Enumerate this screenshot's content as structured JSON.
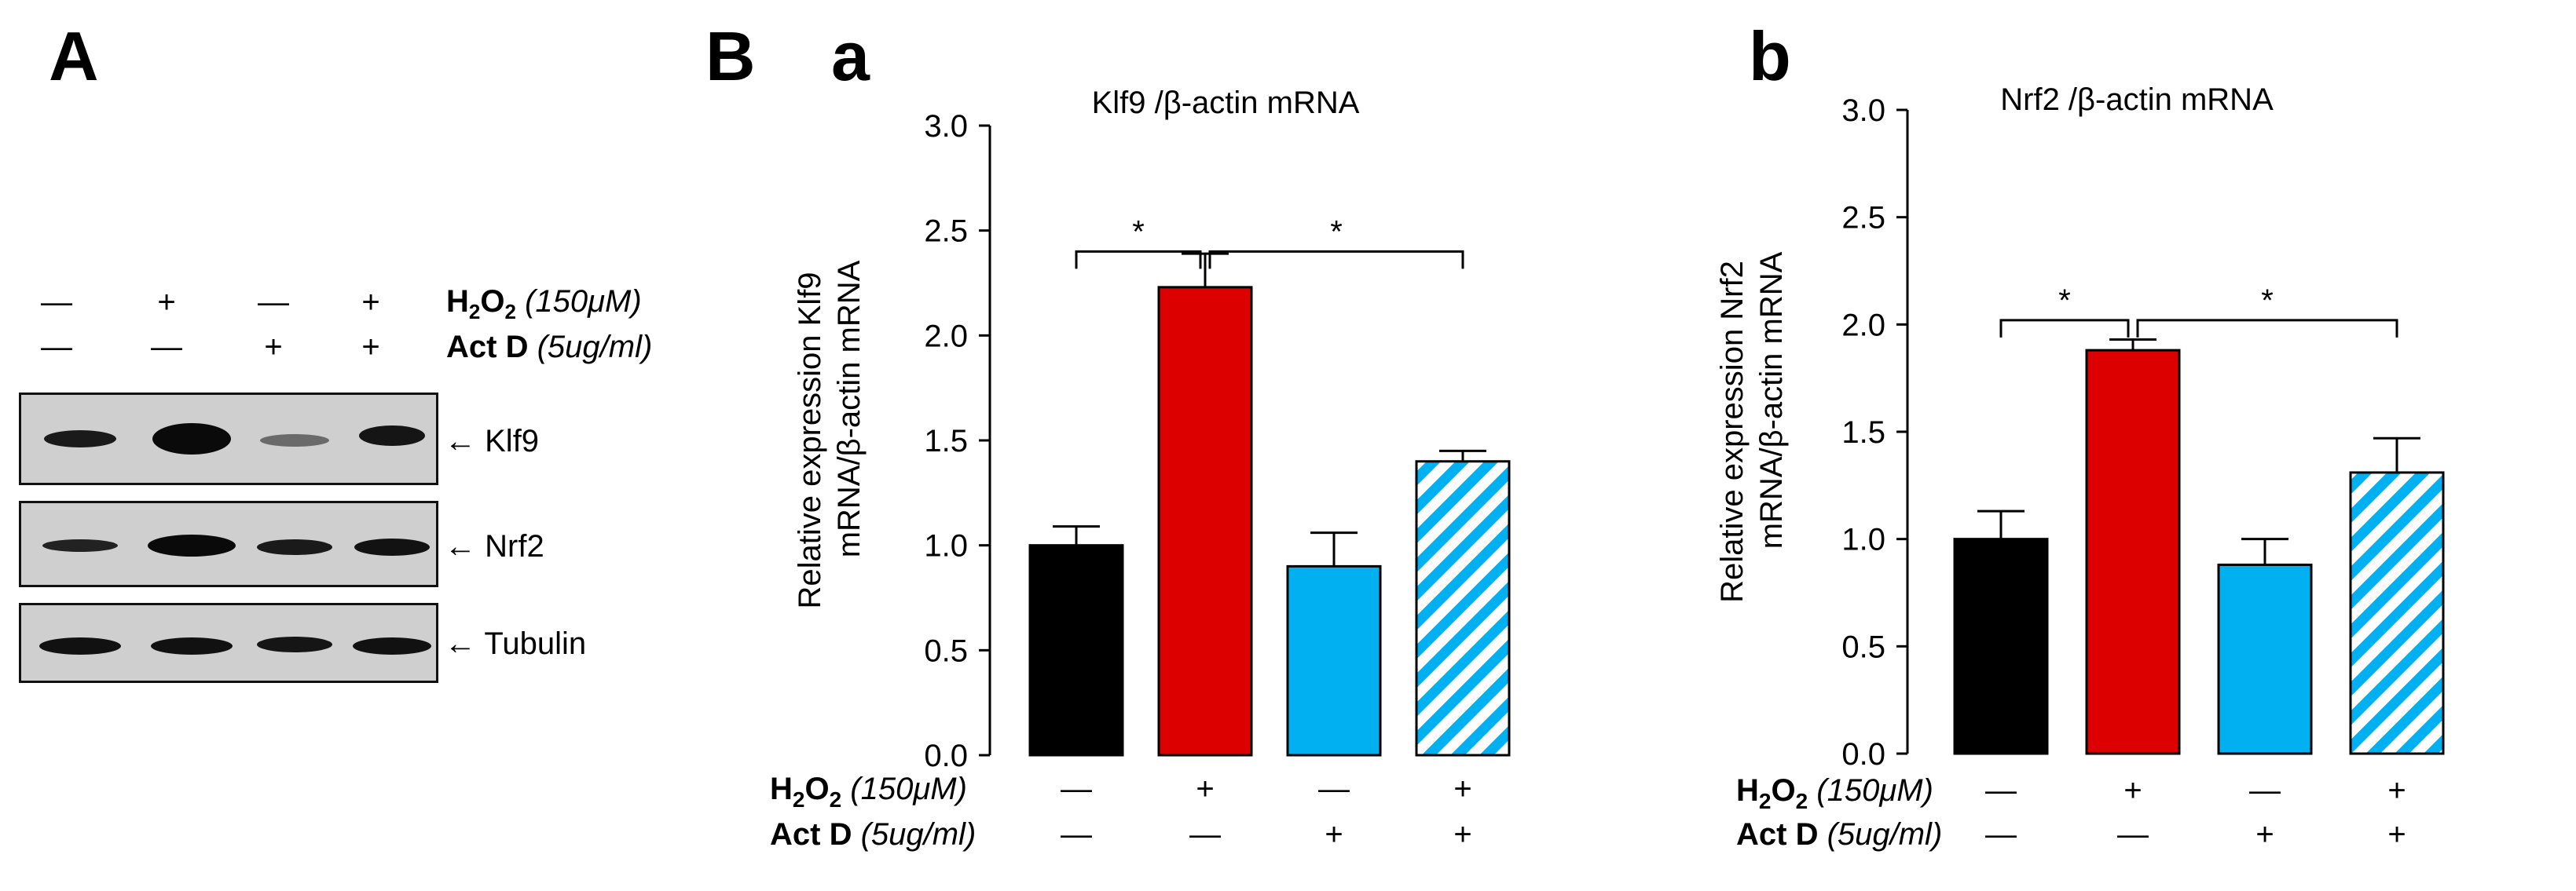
{
  "panel_labels": {
    "A": "A",
    "B": "B",
    "a": "a",
    "b": "b"
  },
  "treatments": {
    "h2o2": {
      "name": "H",
      "sub": "2",
      "mid": "O",
      "sub2": "2",
      "dose": "(150μM)"
    },
    "actd": {
      "name": "Act D",
      "dose": "(5ug/ml)"
    }
  },
  "conditions": {
    "h2o2": [
      "—",
      "+",
      "—",
      "+"
    ],
    "actd": [
      "—",
      "—",
      "+",
      "+"
    ]
  },
  "western": {
    "bands": [
      {
        "label": "Klf9",
        "arrow": "←"
      },
      {
        "label": "Nrf2",
        "arrow": "←"
      },
      {
        "label": "Tubulin",
        "arrow": "←"
      }
    ]
  },
  "colors": {
    "control": "#000000",
    "h2o2": "#dd0000",
    "actd": "#00b0f0",
    "combo_stripe": "#00b0f0",
    "combo_bg": "#ffffff"
  },
  "chart_data": [
    {
      "type": "bar",
      "title": "Klf9 /β-actin mRNA",
      "ylabel_line1": "Relative expression  Klf9",
      "ylabel_line2": "mRNA/β-actin mRNA",
      "ylim": [
        0,
        3.0
      ],
      "yticks": [
        "0.0",
        "0.5",
        "1.0",
        "1.5",
        "2.0",
        "2.5",
        "3.0"
      ],
      "categories": [
        "control",
        "H2O2",
        "Act D",
        "H2O2 + Act D"
      ],
      "values": [
        1.0,
        2.23,
        0.9,
        1.4
      ],
      "errors": [
        0.09,
        0.16,
        0.16,
        0.05
      ],
      "significance": [
        {
          "from": 0,
          "to": 1,
          "label": "*",
          "y": 2.4
        },
        {
          "from": 1,
          "to": 3,
          "label": "*",
          "y": 2.4
        }
      ]
    },
    {
      "type": "bar",
      "title": "Nrf2 /β-actin mRNA",
      "ylabel_line1": "Relative expression  Nrf2",
      "ylabel_line2": "mRNA/β-actin mRNA",
      "ylim": [
        0,
        3.0
      ],
      "yticks": [
        "0.0",
        "0.5",
        "1.0",
        "1.5",
        "2.0",
        "2.5",
        "3.0"
      ],
      "categories": [
        "control",
        "H2O2",
        "Act D",
        "H2O2 + Act D"
      ],
      "values": [
        1.0,
        1.88,
        0.88,
        1.31
      ],
      "errors": [
        0.13,
        0.05,
        0.12,
        0.16
      ],
      "significance": [
        {
          "from": 0,
          "to": 1,
          "label": "*",
          "y": 2.02
        },
        {
          "from": 1,
          "to": 3,
          "label": "*",
          "y": 2.02
        }
      ]
    }
  ]
}
